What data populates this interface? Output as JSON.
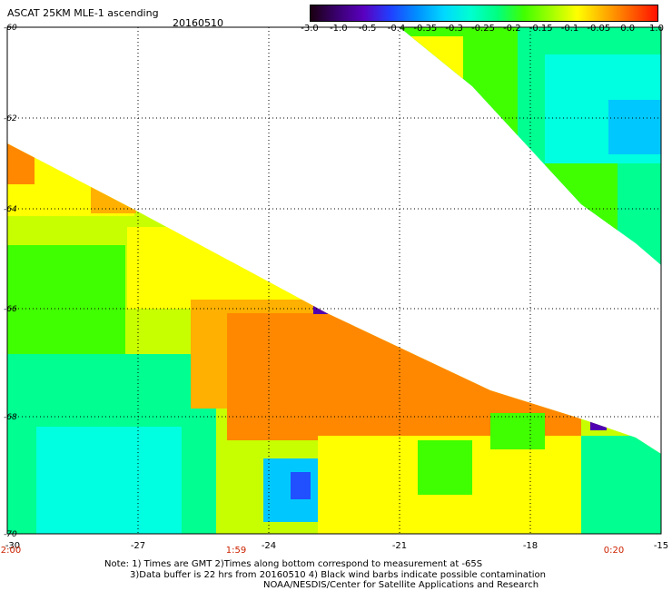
{
  "header": {
    "title": "ASCAT 25KM MLE-1 ascending",
    "date": "20160510"
  },
  "colorbar": {
    "colors": [
      "#1a0010",
      "#3a0070",
      "#5a00c0",
      "#2040ff",
      "#0090ff",
      "#00d8ff",
      "#00ffd0",
      "#00ff80",
      "#40ff00",
      "#a0ff00",
      "#ffff00",
      "#ffb000",
      "#ff6000",
      "#ff1000"
    ],
    "labels": [
      "-3.0",
      "-1.0",
      "-0.5",
      "-0.4",
      "-0.35",
      "-0.3",
      "-0.25",
      "-0.2",
      "-0.15",
      "-0.1",
      "-0.05",
      "0.0",
      "1.0"
    ]
  },
  "map": {
    "lat_labels": [
      "-60",
      "-62",
      "-64",
      "-66",
      "-68",
      "-70"
    ],
    "lon_labels": [
      "-30",
      "-27",
      "-24",
      "-21",
      "-18",
      "-15"
    ],
    "time_labels": [
      "2:00",
      "1:59",
      "0:20"
    ],
    "palette": {
      "orange": "#ff8800",
      "light_orange": "#ffb000",
      "yellow": "#ffff00",
      "yellow_green": "#c8ff00",
      "green": "#40ff00",
      "aqua_green": "#00ff90",
      "cyan": "#00ffe0",
      "light_blue": "#00c8ff",
      "blue": "#2050ff",
      "purple": "#5000b0"
    }
  },
  "notes": {
    "line1": "Note: 1) Times are GMT 2)Times along bottom correspond to measurement at -65S",
    "line2": "3)Data buffer is 22 hrs from 20160510 4) Black wind barbs indicate possible contamination",
    "line3": "NOAA/NESDIS/Center for Satellite Applications and Research"
  }
}
